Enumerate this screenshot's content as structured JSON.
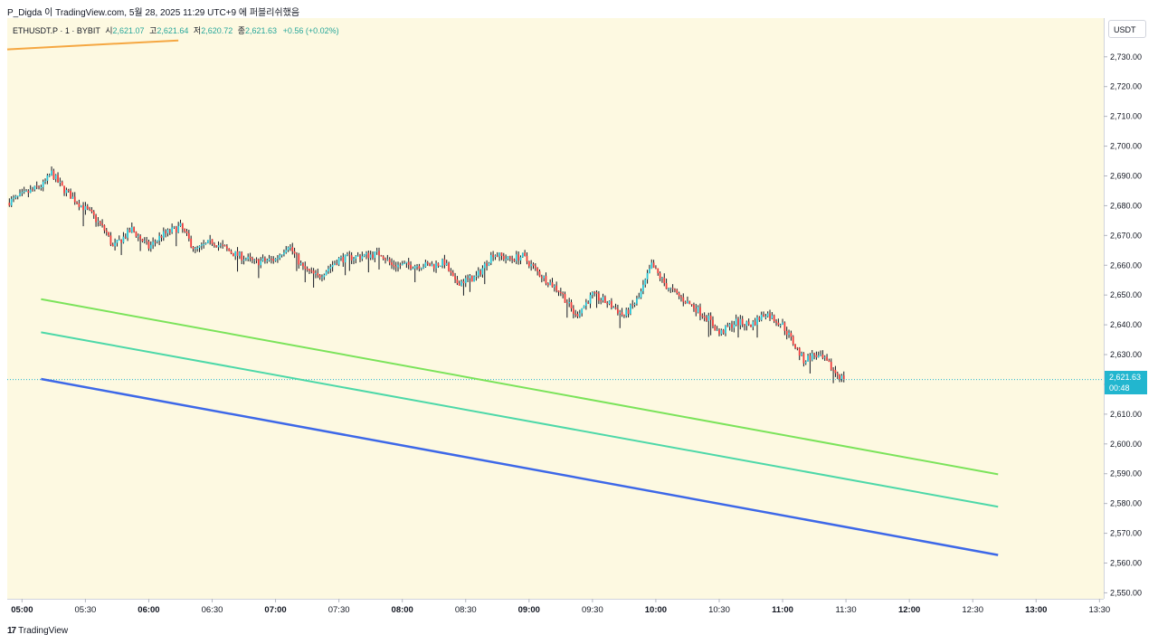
{
  "header": {
    "caption": "P_Digda 이 TradingView.com, 5월 28, 2025 11:29 UTC+9 에 퍼블리쉬했음"
  },
  "ohlc": {
    "symbol": "ETHUSDT.P · 1 · BYBIT",
    "open_label": "시",
    "open": "2,621.07",
    "high_label": "고",
    "high": "2,621.64",
    "low_label": "저",
    "low": "2,620.72",
    "close_label": "종",
    "close": "2,621.63",
    "change": "+0.56 (+0.02%)"
  },
  "price_axis": {
    "currency": "USDT",
    "current_price": "2,621.63",
    "countdown": "00:48"
  },
  "footer": {
    "logo_mark": "17",
    "brand": "TradingView"
  },
  "colors": {
    "background": "#fdf9e1",
    "up_candle": "#26c6da",
    "down_candle": "#ef3b3b",
    "wick": "#131722",
    "trend_orange": "#f5a742",
    "trend_green": "#7be35a",
    "trend_teal": "#4dd8a8",
    "trend_blue": "#3d68e8",
    "price_tag": "#22b6cf"
  },
  "chart_data": {
    "type": "candlestick",
    "title": "",
    "xlabel": "",
    "ylabel": "",
    "ylim": [
      2548,
      2743
    ],
    "x_time_range": [
      "04:53",
      "13:32"
    ],
    "y_ticks": [
      "2,730.00",
      "2,720.00",
      "2,710.00",
      "2,700.00",
      "2,690.00",
      "2,680.00",
      "2,670.00",
      "2,660.00",
      "2,650.00",
      "2,640.00",
      "2,630.00",
      "2,620.00",
      "2,610.00",
      "2,600.00",
      "2,590.00",
      "2,580.00",
      "2,570.00",
      "2,560.00",
      "2,550.00"
    ],
    "x_ticks": [
      {
        "label": "05:00",
        "bold": true
      },
      {
        "label": "05:30",
        "bold": false
      },
      {
        "label": "06:00",
        "bold": true
      },
      {
        "label": "06:30",
        "bold": false
      },
      {
        "label": "07:00",
        "bold": true
      },
      {
        "label": "07:30",
        "bold": false
      },
      {
        "label": "08:00",
        "bold": true
      },
      {
        "label": "08:30",
        "bold": false
      },
      {
        "label": "09:00",
        "bold": true
      },
      {
        "label": "09:30",
        "bold": false
      },
      {
        "label": "10:00",
        "bold": true
      },
      {
        "label": "10:30",
        "bold": false
      },
      {
        "label": "11:00",
        "bold": true
      },
      {
        "label": "11:30",
        "bold": false
      },
      {
        "label": "12:00",
        "bold": true
      },
      {
        "label": "12:30",
        "bold": false
      },
      {
        "label": "13:00",
        "bold": true
      },
      {
        "label": "13:30",
        "bold": false
      }
    ],
    "close_anchors": [
      [
        "04:53",
        2681
      ],
      [
        "05:10",
        2687
      ],
      [
        "05:14",
        2691
      ],
      [
        "05:19",
        2686
      ],
      [
        "05:25",
        2682
      ],
      [
        "05:33",
        2677
      ],
      [
        "05:40",
        2671
      ],
      [
        "05:43",
        2666
      ],
      [
        "05:52",
        2672
      ],
      [
        "06:00",
        2666
      ],
      [
        "06:06",
        2670
      ],
      [
        "06:15",
        2673
      ],
      [
        "06:22",
        2665
      ],
      [
        "06:30",
        2668
      ],
      [
        "06:40",
        2664
      ],
      [
        "06:50",
        2661
      ],
      [
        "07:00",
        2662
      ],
      [
        "07:06",
        2667
      ],
      [
        "07:13",
        2659
      ],
      [
        "07:20",
        2656
      ],
      [
        "07:30",
        2662
      ],
      [
        "07:40",
        2663
      ],
      [
        "07:50",
        2664
      ],
      [
        "07:55",
        2660
      ],
      [
        "08:05",
        2660
      ],
      [
        "08:15",
        2660
      ],
      [
        "08:20",
        2661
      ],
      [
        "08:25",
        2654
      ],
      [
        "08:35",
        2656
      ],
      [
        "08:43",
        2664
      ],
      [
        "08:50",
        2662
      ],
      [
        "08:57",
        2663
      ],
      [
        "09:05",
        2657
      ],
      [
        "09:15",
        2651
      ],
      [
        "09:22",
        2643
      ],
      [
        "09:30",
        2650
      ],
      [
        "09:38",
        2647
      ],
      [
        "09:45",
        2643
      ],
      [
        "09:52",
        2649
      ],
      [
        "09:58",
        2660
      ],
      [
        "10:05",
        2653
      ],
      [
        "10:12",
        2649
      ],
      [
        "10:18",
        2646
      ],
      [
        "10:25",
        2642
      ],
      [
        "10:30",
        2637
      ],
      [
        "10:38",
        2641
      ],
      [
        "10:45",
        2640
      ],
      [
        "10:52",
        2644
      ],
      [
        "11:00",
        2640
      ],
      [
        "11:05",
        2634
      ],
      [
        "11:10",
        2628
      ],
      [
        "11:15",
        2630
      ],
      [
        "11:20",
        2628
      ],
      [
        "11:25",
        2624
      ],
      [
        "11:29",
        2621.63
      ]
    ],
    "trend_lines": [
      {
        "color": "orange",
        "start": [
          "04:53",
          2732.5
        ],
        "end": [
          "06:14",
          2735.5
        ]
      },
      {
        "color": "green",
        "start": [
          "05:09",
          2648.6
        ],
        "end": [
          "12:42",
          2589.8
        ]
      },
      {
        "color": "teal",
        "start": [
          "05:09",
          2637.5
        ],
        "end": [
          "12:42",
          2578.9
        ]
      },
      {
        "color": "blue",
        "start": [
          "05:09",
          2621.8
        ],
        "end": [
          "12:42",
          2562.7
        ]
      }
    ],
    "current_price": 2621.63,
    "grid": false,
    "legend": "none"
  }
}
